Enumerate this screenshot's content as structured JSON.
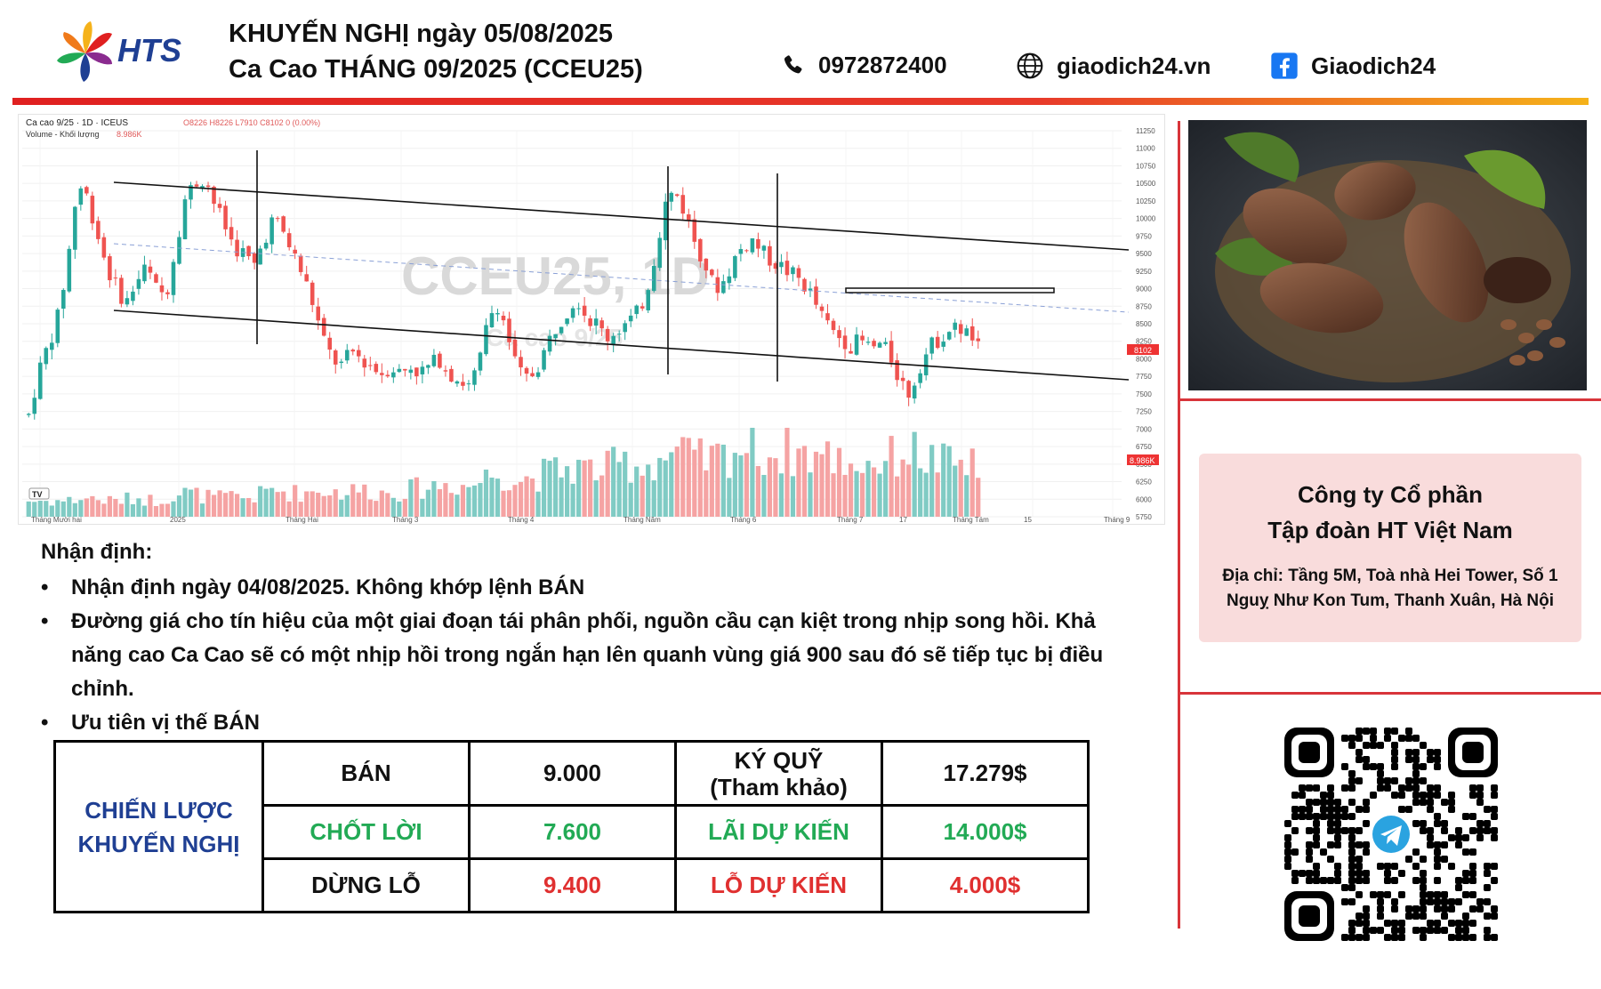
{
  "header": {
    "brand": "HTS",
    "title_line1": "KHUYẾN NGHỊ ngày 05/08/2025",
    "title_line2": "Ca Cao THÁNG 09/2025 (CCEU25)",
    "phone": "0972872400",
    "website": "giaodich24.vn",
    "facebook": "Giaodich24",
    "icons": [
      "phone-icon",
      "globe-icon",
      "facebook-icon"
    ]
  },
  "chart_data": {
    "type": "candlestick",
    "symbol_line": "Ca cao 9/25 · 1D · ICEUS",
    "ohlc_line": "O8226 H8226 L7910 C8102 0 (0.00%)",
    "volume_label": "Volume - Khối lượng",
    "volume_value": "8.986K",
    "watermark": "CCEU25, 1D",
    "watermark_sub": "Ca cao 9/25",
    "last_price_label": "8102",
    "last_volume_label": "8.986K",
    "y_ticks": [
      11250,
      11000,
      10750,
      10500,
      10250,
      10000,
      9750,
      9500,
      9250,
      9000,
      8750,
      8500,
      8250,
      8000,
      7750,
      7500,
      7250,
      7000,
      6750,
      6500,
      6250,
      6000,
      5750
    ],
    "y_tick_labels": [
      "11250",
      "11000",
      "10750",
      "10500",
      "10250",
      "10000",
      "9750",
      "9500",
      "9250",
      "9000",
      "8750",
      "8500",
      "8250",
      "8000",
      "7750",
      "7500",
      "7250",
      "7000",
      "6750",
      "6500",
      "6250",
      "6000",
      "5750"
    ],
    "ylim": [
      5750,
      11250
    ],
    "x_tick_labels": [
      "Tháng Mười hai",
      "2025",
      "Tháng Hai",
      "Tháng 3",
      "Tháng 4",
      "Tháng Năm",
      "Tháng 6",
      "Tháng 7",
      "17",
      "Tháng Tám",
      "15",
      "Tháng 9"
    ],
    "price_path": [
      7200,
      7800,
      8200,
      8600,
      9400,
      10500,
      10300,
      9800,
      9300,
      9000,
      8800,
      9100,
      9300,
      9000,
      8900,
      9600,
      10300,
      10500,
      10600,
      10200,
      9900,
      9600,
      9500,
      9300,
      9700,
      10000,
      9800,
      9500,
      9200,
      8800,
      8300,
      8000,
      7900,
      8100,
      8000,
      7900,
      7800,
      7900,
      7800,
      7900,
      7800,
      7900,
      8000,
      7800,
      7700,
      7600,
      7900,
      8600,
      8800,
      8300,
      7800,
      7700,
      7900,
      8200,
      8500,
      8700,
      8900,
      8600,
      8500,
      8300,
      8400,
      8500,
      8600,
      8900,
      9500,
      10200,
      10400,
      10100,
      9700,
      9400,
      9000,
      9100,
      9400,
      9600,
      9700,
      9500,
      9400,
      9300,
      9200,
      9100,
      8900,
      8600,
      8400,
      8300,
      8200,
      8250,
      8150,
      8200,
      8050,
      7700,
      7500,
      7900,
      8150,
      8300,
      8400,
      8450,
      8350,
      8150
    ],
    "volume_path": [
      1,
      1,
      1,
      1,
      1,
      1.1,
      1.2,
      1.1,
      1,
      1,
      1.1,
      1.2,
      1.1,
      1,
      1.2,
      1.4,
      1.5,
      1.4,
      1.3,
      1.2,
      1.2,
      1.3,
      1.2,
      1.2,
      1.5,
      1.7,
      1.6,
      1.5,
      1.5,
      1.6,
      1.7,
      1.6,
      1.5,
      1.6,
      1.7,
      1.6,
      1.5,
      1.5,
      1.6,
      1.7,
      1.8,
      1.9,
      2.0,
      2.1,
      2.0,
      1.9,
      2.2,
      2.6,
      2.8,
      2.5,
      2.3,
      2.4,
      2.6,
      2.7,
      2.9,
      3.0,
      3.1,
      3.0,
      2.9,
      3.0,
      3.2,
      3.4,
      3.3,
      3.2,
      3.5,
      3.8,
      4.0,
      3.8,
      3.6,
      3.5,
      3.6,
      3.8,
      4.2,
      4.4,
      4.2,
      4.0,
      3.9,
      4.0,
      4.1,
      4.0,
      3.9,
      3.8,
      3.7,
      3.6,
      3.4,
      3.3,
      3.4,
      3.5,
      3.6,
      4.0,
      4.2,
      3.8,
      3.6,
      3.4,
      3.3,
      3.3,
      3.2,
      3.1
    ]
  },
  "analysis": {
    "heading": "Nhận định:",
    "bullets": [
      "Nhận định ngày 04/08/2025. Không khớp lệnh BÁN",
      "Đường giá cho tín hiệu của một giai đoạn tái phân phối, nguồn cầu cạn kiệt trong nhịp song hồi. Khả năng cao Ca Cao sẽ có một nhịp hồi trong ngắn hạn lên quanh vùng giá 900 sau đó sẽ tiếp tục bị điều chỉnh.",
      "Ưu tiên vị thế BÁN"
    ]
  },
  "strategy": {
    "label_line1": "CHIẾN LƯỢC",
    "label_line2": "KHUYẾN NGHỊ",
    "rows": [
      {
        "action": "BÁN",
        "price": "9.000",
        "metric_line1": "KÝ QUỸ",
        "metric_line2": "(Tham khảo)",
        "amount": "17.279$"
      },
      {
        "action": "CHỐT LỜI",
        "price": "7.600",
        "metric_line1": "LÃI DỰ KIẾN",
        "metric_line2": "",
        "amount": "14.000$"
      },
      {
        "action": "DỪNG LỖ",
        "price": "9.400",
        "metric_line1": "LỖ DỰ KIẾN",
        "metric_line2": "",
        "amount": "4.000$"
      }
    ],
    "colors": {
      "label": "#1f3f93",
      "take_profit": "#22aa55",
      "stop_loss": "#e03030"
    }
  },
  "company": {
    "name_line1": "Công ty Cổ phần",
    "name_line2": "Tập đoàn HT Việt Nam",
    "address": "Địa chỉ: Tầng 5M, Toà nhà Hei Tower, Số 1 Nguỵ Như Kon Tum, Thanh Xuân, Hà Nội"
  },
  "images": {
    "photo": "cocoa-pods-photo",
    "qr": "telegram-qr-code"
  }
}
